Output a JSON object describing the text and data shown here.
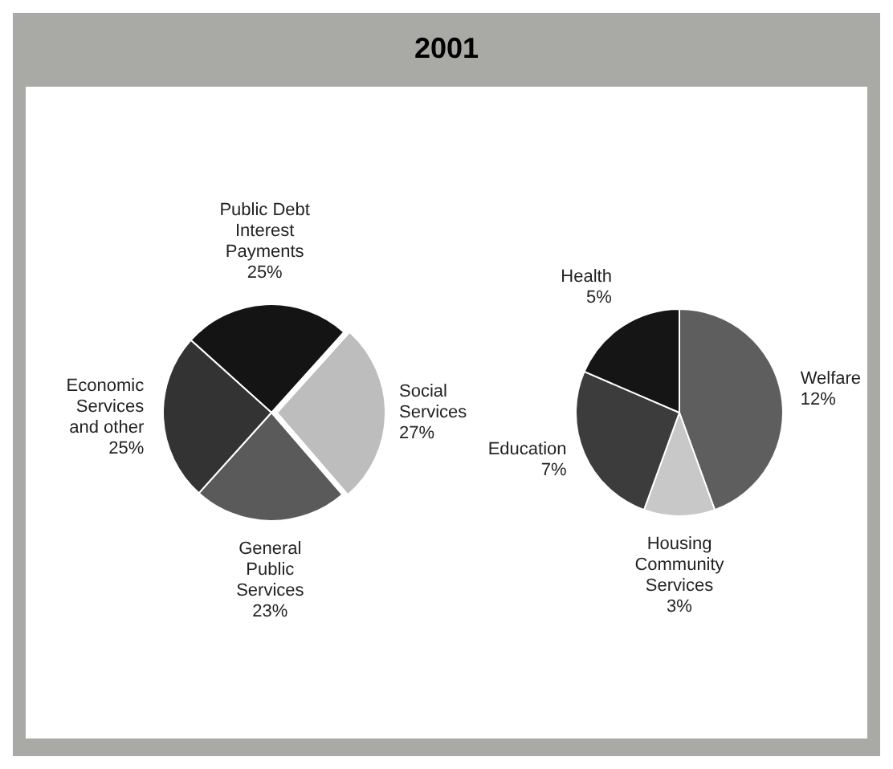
{
  "chart_data": [
    {
      "type": "pie",
      "title": "2001",
      "categories": [
        "Public Debt Interest Payments",
        "Social Services",
        "General Public Services",
        "Economic Services and other"
      ],
      "values": [
        25,
        27,
        23,
        25
      ],
      "colors": [
        "#141414",
        "#bdbdbd",
        "#5a5a5a",
        "#333333"
      ],
      "value_labels": [
        "25%",
        "27%",
        "23%",
        "25%"
      ]
    },
    {
      "type": "pie",
      "categories": [
        "Welfare",
        "Housing Community Services",
        "Education",
        "Health"
      ],
      "values": [
        12,
        3,
        7,
        5
      ],
      "colors": [
        "#5e5e5e",
        "#c8c8c8",
        "#3c3c3c",
        "#151515"
      ],
      "value_labels": [
        "12%",
        "3%",
        "7%",
        "5%"
      ]
    }
  ]
}
